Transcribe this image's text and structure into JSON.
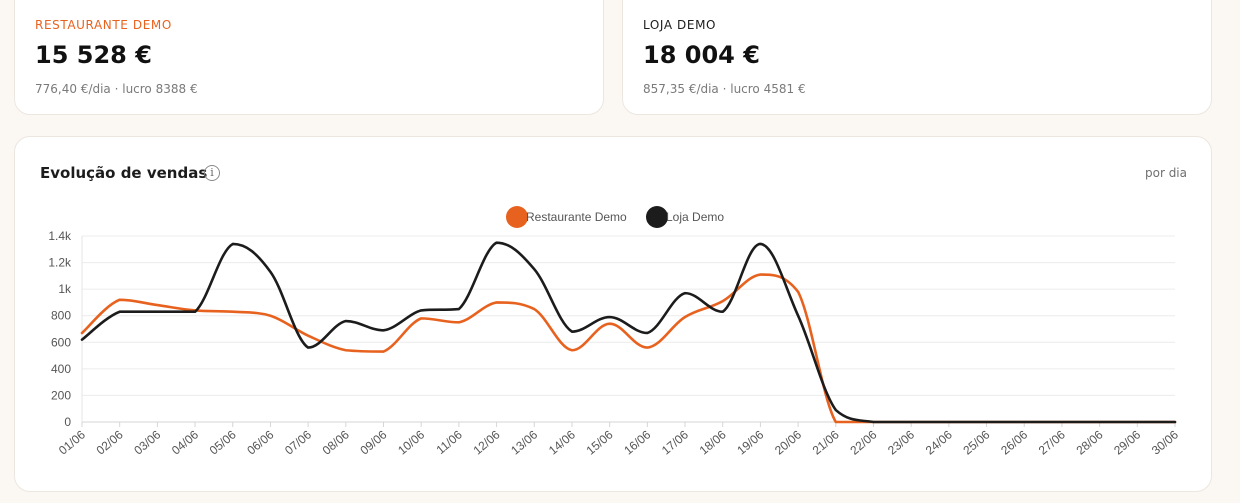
{
  "cards": [
    {
      "label": "RESTAURANTE DEMO",
      "value": "15 528 €",
      "sub": "776,40 €/dia · lucro 8388 €",
      "label_color": "#e8621f"
    },
    {
      "label": "LOJA DEMO",
      "value": "18 004 €",
      "sub": "857,35 €/dia · lucro 4581 €",
      "label_color": "#1c1c1c"
    }
  ],
  "chart": {
    "title": "Evolução de vendas",
    "info_icon": "info-icon",
    "info_glyph": "i",
    "period": "por dia"
  },
  "chart_data": {
    "type": "line",
    "categories": [
      "01/06",
      "02/06",
      "03/06",
      "04/06",
      "05/06",
      "06/06",
      "07/06",
      "08/06",
      "09/06",
      "10/06",
      "11/06",
      "12/06",
      "13/06",
      "14/06",
      "15/06",
      "16/06",
      "17/06",
      "18/06",
      "19/06",
      "20/06",
      "21/06",
      "22/06",
      "23/06",
      "24/06",
      "25/06",
      "26/06",
      "27/06",
      "28/06",
      "29/06",
      "30/06"
    ],
    "series": [
      {
        "name": "Restaurante Demo",
        "color": "#e8621f",
        "values": [
          670,
          920,
          880,
          840,
          830,
          800,
          650,
          540,
          530,
          780,
          750,
          900,
          850,
          540,
          740,
          560,
          790,
          910,
          1110,
          980,
          0,
          0,
          0,
          0,
          0,
          0,
          0,
          0,
          0,
          0
        ]
      },
      {
        "name": "Loja Demo",
        "color": "#1c1c1c",
        "values": [
          620,
          830,
          830,
          830,
          1340,
          1130,
          560,
          760,
          690,
          840,
          850,
          1350,
          1150,
          680,
          790,
          670,
          970,
          830,
          1340,
          800,
          90,
          0,
          0,
          0,
          0,
          0,
          0,
          0,
          0,
          0
        ]
      }
    ],
    "y_ticks": [
      "0",
      "200",
      "400",
      "600",
      "800",
      "1k",
      "1.2k",
      "1.4k"
    ],
    "ylim": [
      0,
      1400
    ],
    "grid": true,
    "legend": "top-center"
  }
}
